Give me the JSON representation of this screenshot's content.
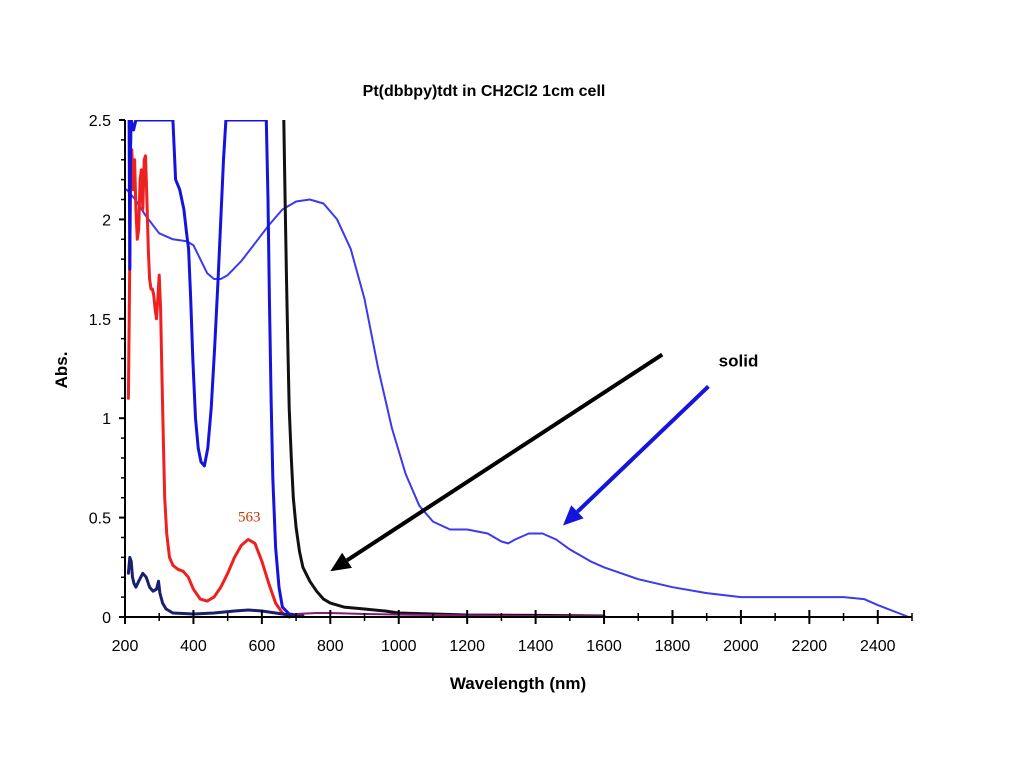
{
  "chart_data": {
    "type": "line",
    "title": "Pt(dbbpy)tdt in CH2Cl2 1cm cell",
    "xlabel": "Wavelength (nm)",
    "ylabel": "Abs.",
    "xlim": [
      200,
      2500
    ],
    "ylim": [
      0,
      2.5
    ],
    "xticks": [
      "200",
      "400",
      "600",
      "800",
      "1000",
      "1200",
      "1400",
      "1600",
      "1800",
      "2000",
      "2200",
      "2400"
    ],
    "yticks": [
      "0",
      "0.5",
      "1",
      "1.5",
      "2",
      "2.5"
    ],
    "grid": false,
    "colors": {
      "solid": "#3a3aee",
      "red": "#ee2020",
      "blue_thick": "#1414dd",
      "black": "#111111",
      "navy": "#1a2070",
      "purple": "#8a1a7a",
      "peak_label": "#cc3300"
    },
    "series": [
      {
        "key": "solid",
        "color": "#3a3aee",
        "width": 2,
        "points": [
          [
            205,
            2.15
          ],
          [
            230,
            2.1
          ],
          [
            260,
            2.02
          ],
          [
            300,
            1.93
          ],
          [
            340,
            1.9
          ],
          [
            380,
            1.89
          ],
          [
            400,
            1.87
          ],
          [
            420,
            1.8
          ],
          [
            440,
            1.73
          ],
          [
            460,
            1.7
          ],
          [
            480,
            1.7
          ],
          [
            500,
            1.72
          ],
          [
            540,
            1.79
          ],
          [
            580,
            1.88
          ],
          [
            620,
            1.97
          ],
          [
            660,
            2.05
          ],
          [
            700,
            2.09
          ],
          [
            740,
            2.1
          ],
          [
            780,
            2.08
          ],
          [
            820,
            2.0
          ],
          [
            860,
            1.85
          ],
          [
            900,
            1.6
          ],
          [
            940,
            1.25
          ],
          [
            980,
            0.95
          ],
          [
            1020,
            0.72
          ],
          [
            1060,
            0.56
          ],
          [
            1100,
            0.48
          ],
          [
            1150,
            0.44
          ],
          [
            1200,
            0.44
          ],
          [
            1260,
            0.42
          ],
          [
            1300,
            0.38
          ],
          [
            1320,
            0.37
          ],
          [
            1340,
            0.39
          ],
          [
            1380,
            0.42
          ],
          [
            1420,
            0.42
          ],
          [
            1460,
            0.39
          ],
          [
            1500,
            0.34
          ],
          [
            1560,
            0.28
          ],
          [
            1600,
            0.25
          ],
          [
            1700,
            0.19
          ],
          [
            1800,
            0.15
          ],
          [
            1900,
            0.12
          ],
          [
            2000,
            0.1
          ],
          [
            2100,
            0.1
          ],
          [
            2200,
            0.1
          ],
          [
            2300,
            0.1
          ],
          [
            2360,
            0.09
          ],
          [
            2400,
            0.06
          ],
          [
            2460,
            0.02
          ],
          [
            2490,
            0.0
          ]
        ]
      },
      {
        "key": "red",
        "color": "#ee2020",
        "width": 3,
        "points": [
          [
            210,
            1.1
          ],
          [
            213,
            1.6
          ],
          [
            216,
            2.2
          ],
          [
            220,
            2.35
          ],
          [
            224,
            2.15
          ],
          [
            228,
            2.3
          ],
          [
            232,
            2.05
          ],
          [
            236,
            1.9
          ],
          [
            240,
            1.95
          ],
          [
            244,
            2.2
          ],
          [
            248,
            2.25
          ],
          [
            252,
            2.05
          ],
          [
            256,
            2.3
          ],
          [
            260,
            2.32
          ],
          [
            264,
            2.1
          ],
          [
            268,
            1.85
          ],
          [
            272,
            1.7
          ],
          [
            276,
            1.65
          ],
          [
            280,
            1.65
          ],
          [
            284,
            1.62
          ],
          [
            288,
            1.55
          ],
          [
            292,
            1.5
          ],
          [
            296,
            1.6
          ],
          [
            300,
            1.72
          ],
          [
            304,
            1.55
          ],
          [
            308,
            1.2
          ],
          [
            312,
            0.9
          ],
          [
            316,
            0.6
          ],
          [
            322,
            0.42
          ],
          [
            330,
            0.3
          ],
          [
            340,
            0.26
          ],
          [
            355,
            0.24
          ],
          [
            370,
            0.23
          ],
          [
            385,
            0.2
          ],
          [
            400,
            0.14
          ],
          [
            420,
            0.09
          ],
          [
            440,
            0.08
          ],
          [
            460,
            0.1
          ],
          [
            480,
            0.15
          ],
          [
            500,
            0.22
          ],
          [
            520,
            0.3
          ],
          [
            540,
            0.36
          ],
          [
            560,
            0.39
          ],
          [
            580,
            0.37
          ],
          [
            600,
            0.28
          ],
          [
            620,
            0.17
          ],
          [
            640,
            0.07
          ],
          [
            660,
            0.02
          ],
          [
            680,
            0.0
          ]
        ]
      },
      {
        "key": "blue_thick",
        "color": "#1414dd",
        "width": 3,
        "points": [
          [
            212,
            2.5
          ],
          [
            214,
            1.75
          ],
          [
            216,
            2.35
          ],
          [
            218,
            2.5
          ],
          [
            225,
            2.45
          ],
          [
            232,
            2.5
          ],
          [
            340,
            2.5
          ],
          [
            348,
            2.2
          ],
          [
            360,
            2.15
          ],
          [
            372,
            2.05
          ],
          [
            380,
            1.93
          ],
          [
            386,
            1.85
          ],
          [
            392,
            1.6
          ],
          [
            398,
            1.3
          ],
          [
            406,
            1.0
          ],
          [
            414,
            0.85
          ],
          [
            422,
            0.78
          ],
          [
            432,
            0.76
          ],
          [
            442,
            0.85
          ],
          [
            452,
            1.05
          ],
          [
            462,
            1.35
          ],
          [
            472,
            1.7
          ],
          [
            480,
            2.0
          ],
          [
            488,
            2.3
          ],
          [
            495,
            2.5
          ],
          [
            613,
            2.5
          ],
          [
            618,
            2.1
          ],
          [
            622,
            1.6
          ],
          [
            627,
            1.1
          ],
          [
            632,
            0.7
          ],
          [
            640,
            0.35
          ],
          [
            650,
            0.15
          ],
          [
            660,
            0.05
          ],
          [
            680,
            0.015
          ],
          [
            700,
            0.01
          ]
        ]
      },
      {
        "key": "black",
        "color": "#111111",
        "width": 3,
        "points": [
          [
            664,
            2.5
          ],
          [
            668,
            2.1
          ],
          [
            672,
            1.7
          ],
          [
            676,
            1.35
          ],
          [
            680,
            1.05
          ],
          [
            686,
            0.8
          ],
          [
            692,
            0.6
          ],
          [
            700,
            0.45
          ],
          [
            710,
            0.33
          ],
          [
            720,
            0.25
          ],
          [
            740,
            0.18
          ],
          [
            760,
            0.13
          ],
          [
            780,
            0.09
          ],
          [
            800,
            0.07
          ],
          [
            840,
            0.05
          ],
          [
            900,
            0.04
          ],
          [
            960,
            0.03
          ],
          [
            1000,
            0.02
          ],
          [
            1100,
            0.015
          ],
          [
            1200,
            0.01
          ],
          [
            1400,
            0.008
          ],
          [
            1600,
            0.005
          ]
        ]
      },
      {
        "key": "navy",
        "color": "#1a2070",
        "width": 3,
        "points": [
          [
            210,
            0.22
          ],
          [
            214,
            0.3
          ],
          [
            218,
            0.28
          ],
          [
            222,
            0.2
          ],
          [
            226,
            0.17
          ],
          [
            232,
            0.15
          ],
          [
            240,
            0.18
          ],
          [
            252,
            0.22
          ],
          [
            262,
            0.2
          ],
          [
            272,
            0.15
          ],
          [
            282,
            0.13
          ],
          [
            292,
            0.14
          ],
          [
            298,
            0.18
          ],
          [
            302,
            0.12
          ],
          [
            310,
            0.07
          ],
          [
            320,
            0.04
          ],
          [
            340,
            0.02
          ],
          [
            400,
            0.015
          ],
          [
            460,
            0.02
          ],
          [
            520,
            0.03
          ],
          [
            560,
            0.035
          ],
          [
            600,
            0.03
          ],
          [
            640,
            0.02
          ],
          [
            680,
            0.01
          ],
          [
            720,
            0.005
          ]
        ]
      },
      {
        "key": "purple",
        "color": "#8a1a7a",
        "width": 2,
        "points": [
          [
            700,
            0.015
          ],
          [
            760,
            0.02
          ],
          [
            800,
            0.02
          ],
          [
            840,
            0.018
          ],
          [
            900,
            0.015
          ],
          [
            1000,
            0.012
          ],
          [
            1100,
            0.01
          ],
          [
            1200,
            0.008
          ],
          [
            1400,
            0.005
          ],
          [
            1600,
            0.004
          ]
        ]
      }
    ],
    "annotations": [
      {
        "key": "peak_label",
        "text": "563",
        "x": 563,
        "y": 0.48
      },
      {
        "key": "solid_label",
        "text": "solid",
        "x": 1935,
        "y": 1.26
      }
    ],
    "arrows": [
      {
        "key": "black_arrow",
        "color": "#000000",
        "from": [
          1770,
          1.32
        ],
        "to": [
          800,
          0.23
        ]
      },
      {
        "key": "blue_arrow",
        "color": "#1414dd",
        "from": [
          1905,
          1.16
        ],
        "to": [
          1480,
          0.46
        ]
      }
    ]
  }
}
